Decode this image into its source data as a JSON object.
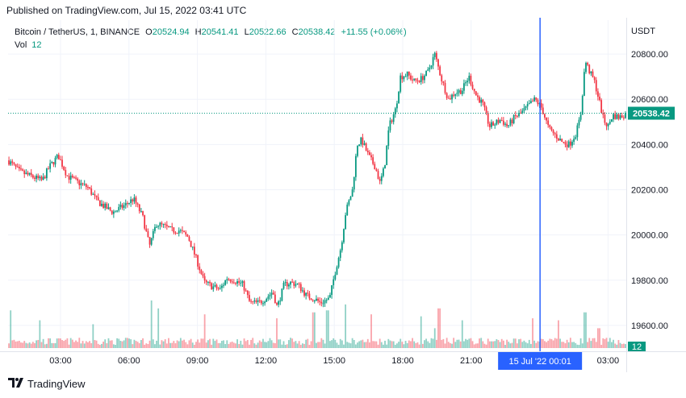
{
  "published": "Published on TradingView.com, Jul 15, 2022 03:41 UTC",
  "header": {
    "symbol": "Bitcoin / TetherUS, 1, BINANCE",
    "open_label": "O",
    "open": "20524.94",
    "high_label": "H",
    "high": "20541.41",
    "low_label": "L",
    "low": "20522.66",
    "close_label": "C",
    "close": "20538.42",
    "change": "+11.55 (+0.06%)"
  },
  "volume": {
    "label": "Vol",
    "value": "12"
  },
  "currency": "USDT",
  "footer": {
    "brand": "TradingView",
    "logo_icon": "tradingview-logo-icon"
  },
  "colors": {
    "up": "#089981",
    "down": "#f23645",
    "crosshair": "#2962ff",
    "last_price_bg": "#089981"
  },
  "chart_data": {
    "type": "candlestick",
    "ylim": [
      19500,
      20950
    ],
    "y_ticks": [
      "20800.00",
      "20600.00",
      "20400.00",
      "20200.00",
      "20000.00",
      "19800.00",
      "19600.00"
    ],
    "y_tick_values": [
      20800,
      20600,
      20400,
      20200,
      20000,
      19800,
      19600
    ],
    "x_ticks": [
      "03:00",
      "06:00",
      "09:00",
      "12:00",
      "15:00",
      "18:00",
      "21:00",
      "03:00"
    ],
    "x_tick_hours": [
      3,
      6,
      9,
      12,
      15,
      18,
      21,
      27
    ],
    "x_range_hours": [
      0.7,
      27.8
    ],
    "last_price": "20538.42",
    "last_price_value": 20538.42,
    "volume_last_label": "12",
    "crosshair_hour": 24.02,
    "crosshair_label": "15 Jul '22  00:01",
    "price_path": [
      [
        0.7,
        20330
      ],
      [
        1.2,
        20280
      ],
      [
        1.7,
        20260
      ],
      [
        2.2,
        20240
      ],
      [
        2.5,
        20300
      ],
      [
        2.9,
        20350
      ],
      [
        3.3,
        20260
      ],
      [
        3.8,
        20230
      ],
      [
        4.2,
        20210
      ],
      [
        4.6,
        20150
      ],
      [
        5.0,
        20120
      ],
      [
        5.3,
        20100
      ],
      [
        5.8,
        20130
      ],
      [
        6.2,
        20160
      ],
      [
        6.6,
        20080
      ],
      [
        6.9,
        19950
      ],
      [
        7.2,
        20050
      ],
      [
        7.5,
        20040
      ],
      [
        7.9,
        20020
      ],
      [
        8.2,
        20020
      ],
      [
        8.6,
        19990
      ],
      [
        9.0,
        19880
      ],
      [
        9.3,
        19790
      ],
      [
        9.7,
        19770
      ],
      [
        10.0,
        19760
      ],
      [
        10.3,
        19810
      ],
      [
        10.6,
        19800
      ],
      [
        11.0,
        19780
      ],
      [
        11.3,
        19700
      ],
      [
        11.7,
        19700
      ],
      [
        12.0,
        19720
      ],
      [
        12.3,
        19750
      ],
      [
        12.5,
        19680
      ],
      [
        12.8,
        19780
      ],
      [
        13.1,
        19790
      ],
      [
        13.4,
        19780
      ],
      [
        13.8,
        19730
      ],
      [
        14.1,
        19720
      ],
      [
        14.4,
        19700
      ],
      [
        14.8,
        19720
      ],
      [
        15.0,
        19820
      ],
      [
        15.3,
        19950
      ],
      [
        15.5,
        20100
      ],
      [
        15.8,
        20200
      ],
      [
        16.0,
        20400
      ],
      [
        16.2,
        20420
      ],
      [
        16.5,
        20350
      ],
      [
        16.8,
        20300
      ],
      [
        17.0,
        20230
      ],
      [
        17.2,
        20300
      ],
      [
        17.4,
        20480
      ],
      [
        17.7,
        20560
      ],
      [
        17.9,
        20700
      ],
      [
        18.2,
        20710
      ],
      [
        18.5,
        20680
      ],
      [
        18.8,
        20690
      ],
      [
        19.1,
        20720
      ],
      [
        19.4,
        20800
      ],
      [
        19.7,
        20690
      ],
      [
        20.0,
        20600
      ],
      [
        20.3,
        20630
      ],
      [
        20.6,
        20640
      ],
      [
        20.9,
        20700
      ],
      [
        21.2,
        20620
      ],
      [
        21.5,
        20580
      ],
      [
        21.8,
        20480
      ],
      [
        22.0,
        20490
      ],
      [
        22.3,
        20510
      ],
      [
        22.6,
        20480
      ],
      [
        22.9,
        20520
      ],
      [
        23.2,
        20540
      ],
      [
        23.5,
        20570
      ],
      [
        23.8,
        20600
      ],
      [
        24.1,
        20560
      ],
      [
        24.4,
        20470
      ],
      [
        24.7,
        20440
      ],
      [
        25.0,
        20410
      ],
      [
        25.3,
        20400
      ],
      [
        25.6,
        20450
      ],
      [
        25.8,
        20530
      ],
      [
        26.0,
        20770
      ],
      [
        26.2,
        20720
      ],
      [
        26.4,
        20680
      ],
      [
        26.6,
        20600
      ],
      [
        26.8,
        20510
      ],
      [
        27.0,
        20480
      ],
      [
        27.2,
        20530
      ],
      [
        27.5,
        20520
      ],
      [
        27.8,
        20538
      ]
    ],
    "volume_spikes": [
      [
        0.8,
        95
      ],
      [
        2.1,
        70
      ],
      [
        4.4,
        60
      ],
      [
        7.0,
        120
      ],
      [
        7.3,
        100
      ],
      [
        9.3,
        85
      ],
      [
        12.5,
        75
      ],
      [
        14.1,
        90
      ],
      [
        14.7,
        95
      ],
      [
        15.5,
        110
      ],
      [
        16.6,
        85
      ],
      [
        18.8,
        80
      ],
      [
        19.4,
        50
      ],
      [
        19.6,
        100
      ],
      [
        20.6,
        70
      ],
      [
        23.7,
        75
      ],
      [
        24.8,
        70
      ],
      [
        26.0,
        90
      ],
      [
        26.6,
        50
      ]
    ],
    "volume_max": 130
  }
}
